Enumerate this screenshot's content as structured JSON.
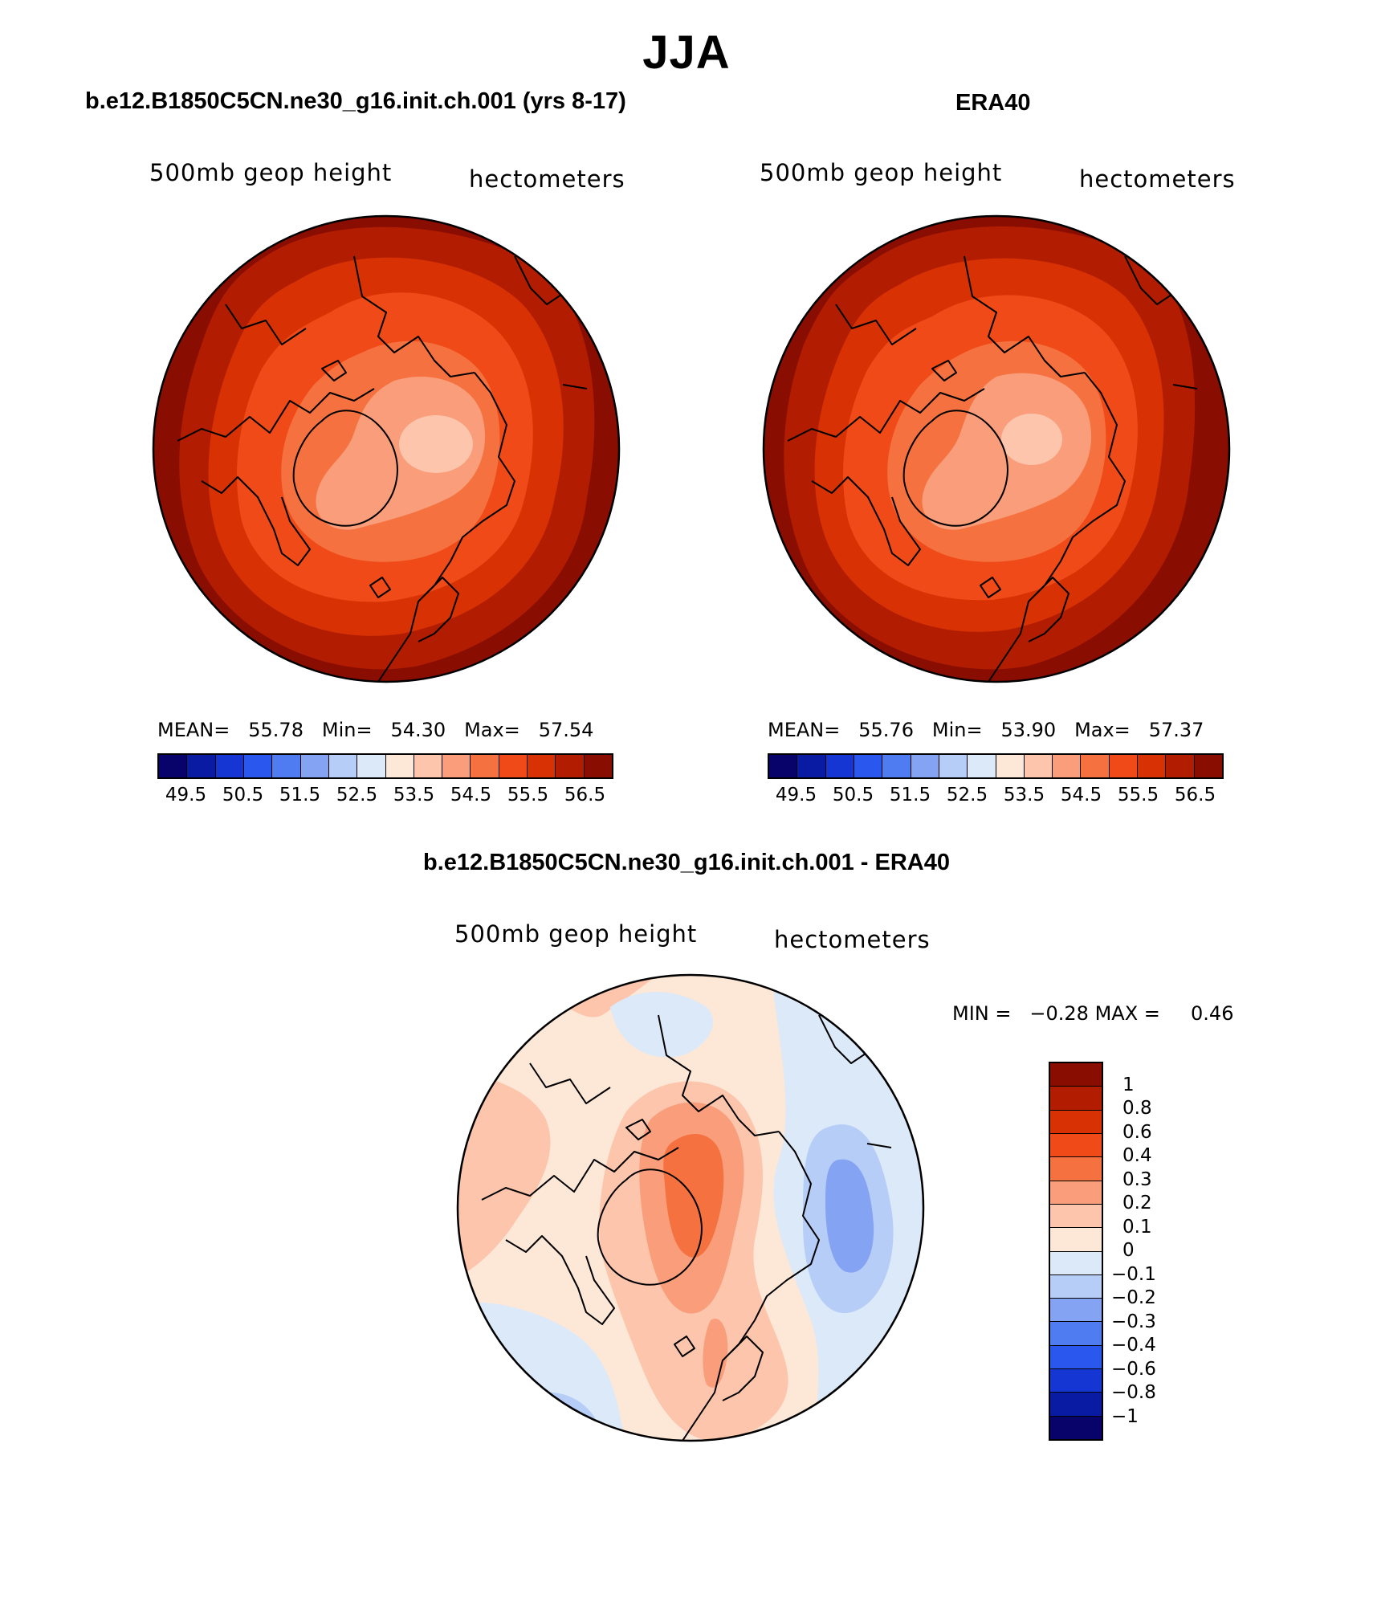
{
  "title": "JJA",
  "panels": [
    {
      "title": "b.e12.B1850C5CN.ne30_g16.init.ch.001 (yrs 8-17)",
      "left_label": "500mb geop height",
      "right_label": "hectometers",
      "stats": {
        "mean_label": "MEAN=",
        "mean": "55.78",
        "min_label": "Min=",
        "min": "54.30",
        "max_label": "Max=",
        "max": "57.54"
      }
    },
    {
      "title": "ERA40",
      "left_label": "500mb geop height",
      "right_label": "hectometers",
      "stats": {
        "mean_label": "MEAN=",
        "mean": "55.76",
        "min_label": "Min=",
        "min": "53.90",
        "max_label": "Max=",
        "max": "57.37"
      }
    },
    {
      "title": "b.e12.B1850C5CN.ne30_g16.init.ch.001 - ERA40",
      "left_label": "500mb geop height",
      "right_label": "hectometers",
      "stats": {
        "min_label": "MIN =",
        "min": "−0.28",
        "max_label": "MAX =",
        "max": "0.46"
      }
    }
  ],
  "abs_colorbar": {
    "colors": [
      "#08036b",
      "#0a1ba3",
      "#1536d3",
      "#2a58ee",
      "#507cf2",
      "#85a3f3",
      "#b6cdf7",
      "#dbe9f9",
      "#fde7d6",
      "#fcc5ac",
      "#f99d7a",
      "#f5713f",
      "#ef4a17",
      "#d73104",
      "#b21d02",
      "#8a0d01"
    ],
    "labels": [
      "49.5",
      "50.5",
      "51.5",
      "52.5",
      "53.5",
      "54.5",
      "55.5",
      "56.5"
    ]
  },
  "diff_colorbar": {
    "colors": [
      "#8a0d01",
      "#b21d02",
      "#d73104",
      "#ef4a17",
      "#f5713f",
      "#f99d7a",
      "#fcc5ac",
      "#fde7d6",
      "#dbe9f9",
      "#b6cdf7",
      "#85a3f3",
      "#507cf2",
      "#2a58ee",
      "#1536d3",
      "#0a1ba3",
      "#08036b"
    ],
    "labels": [
      "1",
      "0.8",
      "0.6",
      "0.4",
      "0.3",
      "0.2",
      "0.1",
      "0",
      "−0.1",
      "−0.2",
      "−0.3",
      "−0.4",
      "−0.6",
      "−0.8",
      "−1"
    ]
  },
  "map_colors": {
    "dark1": "#8a0d01",
    "dark2": "#b21d02",
    "c3": "#d73104",
    "c4": "#ef4a17",
    "c5": "#f5713f",
    "c6": "#f99d7a",
    "c7": "#fcc5ac",
    "pos1": "#fde7d6",
    "pos2": "#fcc5ac",
    "pos3": "#f99d7a",
    "pos4": "#f5713f",
    "neg1": "#dbe9f9",
    "neg2": "#b6cdf7",
    "neg3": "#85a3f3"
  }
}
